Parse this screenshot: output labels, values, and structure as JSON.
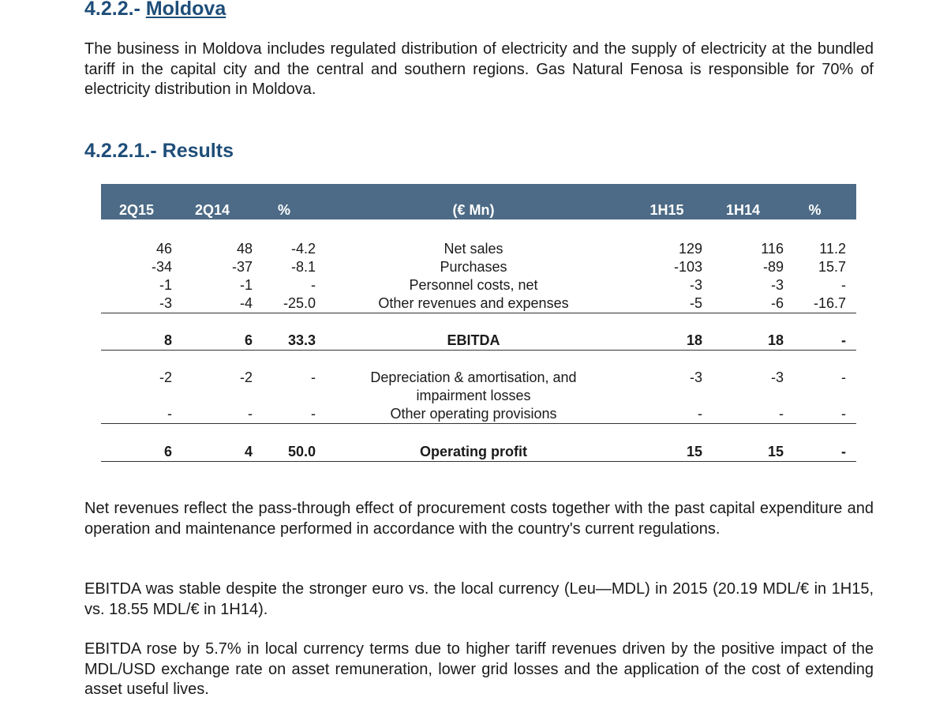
{
  "heading": {
    "number": "4.2.2.-",
    "title": "Moldova"
  },
  "intro": "The business in Moldova includes regulated distribution of electricity and the supply of electricity at the bundled tariff in the capital city and the central and southern regions. Gas Natural Fenosa is responsible for 70% of electricity distribution in Moldova.",
  "subheading": "4.2.2.1.- Results",
  "table": {
    "columns": [
      "2Q15",
      "2Q14",
      "%",
      "(€ Mn)",
      "1H15",
      "1H14",
      "%"
    ],
    "rows": [
      [
        "46",
        "48",
        "-4.2",
        "Net sales",
        "129",
        "116",
        "11.2"
      ],
      [
        "-34",
        "-37",
        "-8.1",
        "Purchases",
        "-103",
        "-89",
        "15.7"
      ],
      [
        "-1",
        "-1",
        "-",
        "Personnel costs, net",
        "-3",
        "-3",
        "-"
      ],
      [
        "-3",
        "-4",
        "-25.0",
        "Other revenues and expenses",
        "-5",
        "-6",
        "-16.7"
      ],
      [
        "8",
        "6",
        "33.3",
        "EBITDA",
        "18",
        "18",
        "-"
      ],
      [
        "-2",
        "-2",
        "-",
        "Depreciation & amortisation, and impairment losses",
        "-3",
        "-3",
        "-"
      ],
      [
        "-",
        "-",
        "-",
        "Other operating provisions",
        "-",
        "-",
        "-"
      ],
      [
        "6",
        "4",
        "50.0",
        "Operating profit",
        "15",
        "15",
        "-"
      ]
    ]
  },
  "paragraphs": [
    "Net revenues reflect the pass-through effect of procurement costs together with the past capital expenditure and operation and maintenance performed in accordance with the country's current regulations.",
    "EBITDA was stable despite the stronger euro vs. the local currency (Leu—MDL) in 2015 (20.19 MDL/€ in 1H15, vs. 18.55 MDL/€ in 1H14).",
    "EBITDA rose by 5.7% in local currency terms due to higher tariff revenues driven by the positive impact of the MDL/USD exchange rate on asset remuneration, lower grid losses and the application of the cost of extending asset useful lives."
  ]
}
